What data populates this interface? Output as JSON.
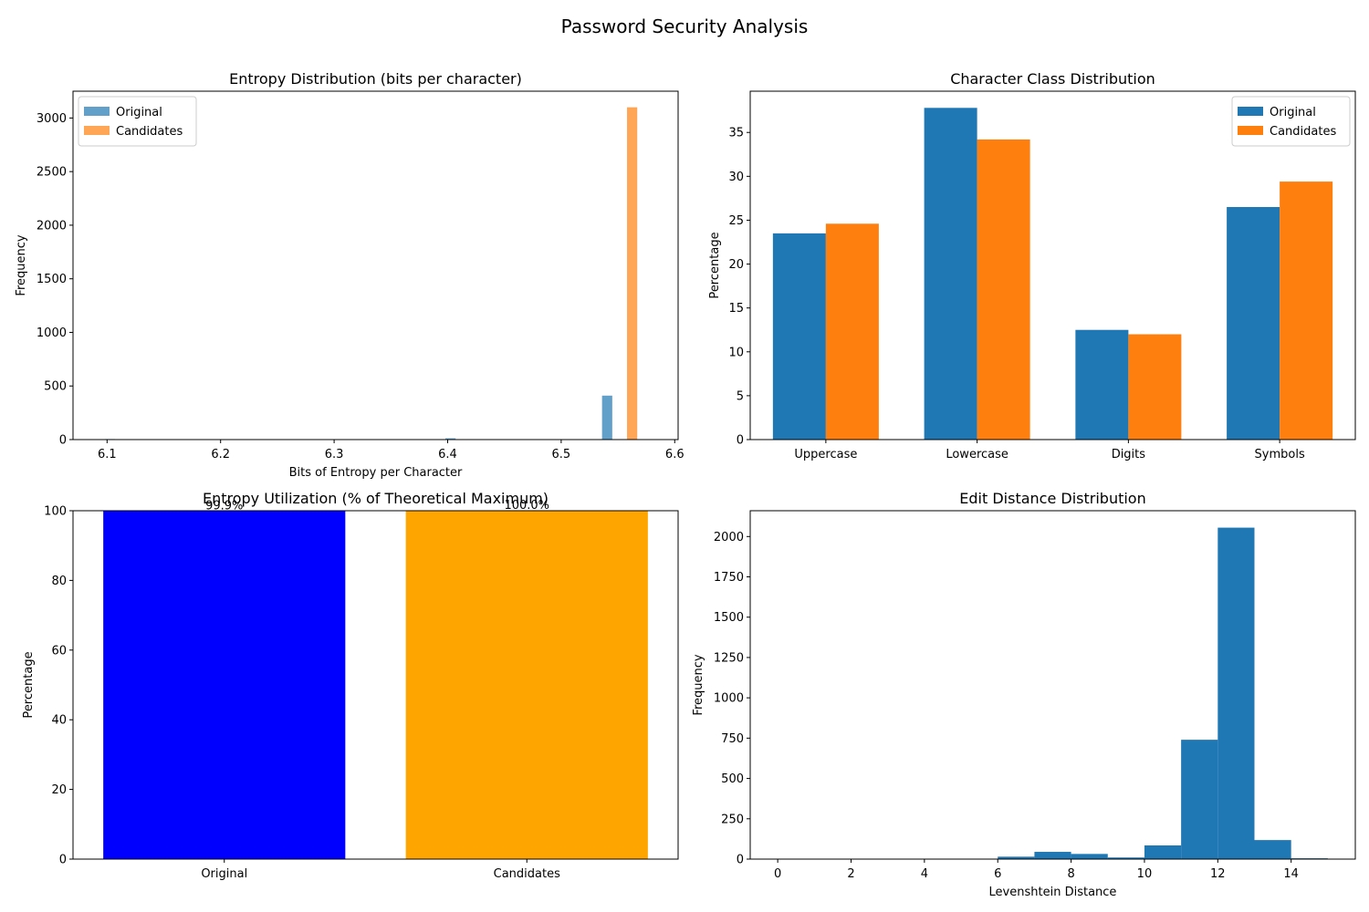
{
  "suptitle": "Password Security Analysis",
  "colors": {
    "original_hist": "#1f77b4",
    "candidates_hist": "#ff7f0e",
    "original_bar": "#1f77b4",
    "candidates_bar": "#ff7f0e",
    "util_original": "#0000ff",
    "util_candidates": "#ffa500",
    "edit_hist": "#1f77b4"
  },
  "chart_data": [
    {
      "type": "bar",
      "subtype": "histogram",
      "title": "Entropy Distribution (bits per character)",
      "xlabel": "Bits of Entropy per Character",
      "ylabel": "Frequency",
      "xlim": [
        6.07,
        6.603
      ],
      "ylim": [
        0,
        3250
      ],
      "xticks": [
        6.1,
        6.2,
        6.3,
        6.4,
        6.5,
        6.6
      ],
      "xtick_labels": [
        "6.1",
        "6.2",
        "6.3",
        "6.4",
        "6.5",
        "6.6"
      ],
      "yticks": [
        0,
        500,
        1000,
        1500,
        2000,
        2500,
        3000
      ],
      "ytick_labels": [
        "0",
        "500",
        "1000",
        "1500",
        "2000",
        "2500",
        "3000"
      ],
      "legend_position": "top-left",
      "series": [
        {
          "name": "Original",
          "alpha": 0.7,
          "bins": [
            {
              "x0": 6.098,
              "x1": 6.107,
              "value": 5
            },
            {
              "x0": 6.398,
              "x1": 6.407,
              "value": 12
            },
            {
              "x0": 6.536,
              "x1": 6.545,
              "value": 410
            }
          ]
        },
        {
          "name": "Candidates",
          "alpha": 0.7,
          "bins": [
            {
              "x0": 6.558,
              "x1": 6.567,
              "value": 3100
            }
          ]
        }
      ]
    },
    {
      "type": "bar",
      "title": "Character Class Distribution",
      "xlabel": "",
      "ylabel": "Percentage",
      "ylim": [
        0,
        39.7
      ],
      "categories": [
        "Uppercase",
        "Lowercase",
        "Digits",
        "Symbols"
      ],
      "yticks": [
        0,
        5,
        10,
        15,
        20,
        25,
        30,
        35
      ],
      "ytick_labels": [
        "0",
        "5",
        "10",
        "15",
        "20",
        "25",
        "30",
        "35"
      ],
      "legend_position": "top-right",
      "series": [
        {
          "name": "Original",
          "values": [
            23.5,
            37.8,
            12.5,
            26.5
          ]
        },
        {
          "name": "Candidates",
          "values": [
            24.6,
            34.2,
            12.0,
            29.4
          ]
        }
      ]
    },
    {
      "type": "bar",
      "title": "Entropy Utilization (% of Theoretical Maximum)",
      "xlabel": "",
      "ylabel": "Percentage",
      "ylim": [
        0,
        100
      ],
      "categories": [
        "Original",
        "Candidates"
      ],
      "values": [
        99.9,
        100.0
      ],
      "value_labels": [
        "99.9%",
        "100.0%"
      ],
      "yticks": [
        0,
        20,
        40,
        60,
        80,
        100
      ],
      "ytick_labels": [
        "0",
        "20",
        "40",
        "60",
        "80",
        "100"
      ]
    },
    {
      "type": "bar",
      "subtype": "histogram",
      "title": "Edit Distance Distribution",
      "xlabel": "Levenshtein Distance",
      "ylabel": "Frequency",
      "xlim": [
        -0.75,
        15.75
      ],
      "ylim": [
        0,
        2160
      ],
      "xticks": [
        0,
        2,
        4,
        6,
        8,
        10,
        12,
        14
      ],
      "xtick_labels": [
        "0",
        "2",
        "4",
        "6",
        "8",
        "10",
        "12",
        "14"
      ],
      "yticks": [
        0,
        250,
        500,
        750,
        1000,
        1250,
        1500,
        1750,
        2000
      ],
      "ytick_labels": [
        "0",
        "250",
        "500",
        "750",
        "1000",
        "1250",
        "1500",
        "1750",
        "2000"
      ],
      "bins": [
        {
          "x0": 0,
          "x1": 1,
          "value": 0
        },
        {
          "x0": 1,
          "x1": 2,
          "value": 0
        },
        {
          "x0": 2,
          "x1": 3,
          "value": 0
        },
        {
          "x0": 3,
          "x1": 4,
          "value": 0
        },
        {
          "x0": 4,
          "x1": 5,
          "value": 0
        },
        {
          "x0": 5,
          "x1": 6,
          "value": 0
        },
        {
          "x0": 6,
          "x1": 7,
          "value": 15
        },
        {
          "x0": 7,
          "x1": 8,
          "value": 45
        },
        {
          "x0": 8,
          "x1": 9,
          "value": 32
        },
        {
          "x0": 9,
          "x1": 10,
          "value": 10
        },
        {
          "x0": 10,
          "x1": 11,
          "value": 85
        },
        {
          "x0": 11,
          "x1": 12,
          "value": 740
        },
        {
          "x0": 12,
          "x1": 13,
          "value": 2055
        },
        {
          "x0": 13,
          "x1": 14,
          "value": 118
        },
        {
          "x0": 14,
          "x1": 15,
          "value": 5
        }
      ]
    }
  ]
}
